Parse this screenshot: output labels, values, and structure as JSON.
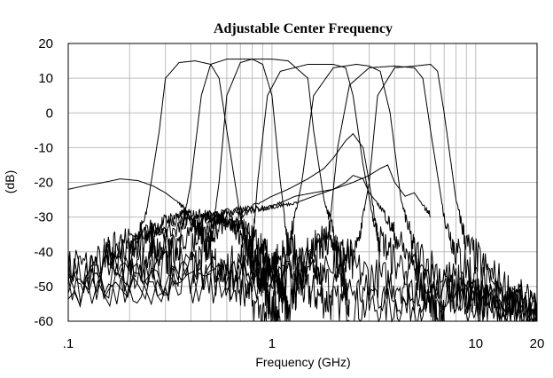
{
  "chart_data": {
    "type": "line",
    "title": "Adjustable Center Frequency",
    "xlabel": "Frequency (GHz)",
    "ylabel": "(dB)",
    "x_scale": "log",
    "xlim": [
      0.1,
      20
    ],
    "ylim": [
      -60,
      20
    ],
    "x_ticks": [
      {
        "value": 0.1,
        "label": ".1"
      },
      {
        "value": 1,
        "label": "1"
      },
      {
        "value": 10,
        "label": "10"
      },
      {
        "value": 20,
        "label": "20"
      }
    ],
    "y_ticks": [
      20,
      10,
      0,
      -10,
      -20,
      -30,
      -40,
      -50,
      -60
    ],
    "grid": true,
    "legend": "none",
    "series": [
      {
        "x": [
          0.1,
          0.15,
          0.2,
          0.24,
          0.28,
          0.3,
          0.35,
          0.42,
          0.5,
          0.55,
          0.6,
          0.7,
          0.8,
          1,
          1.3,
          1.6,
          2,
          3,
          5,
          8,
          12,
          20
        ],
        "y": [
          -45,
          -43,
          -42,
          -30,
          -5,
          10,
          14.5,
          15,
          14,
          10,
          -5,
          -30,
          -42,
          -47,
          -50,
          -52,
          -55,
          -56,
          -55,
          -56,
          -57,
          -58
        ]
      },
      {
        "x": [
          0.1,
          0.2,
          0.3,
          0.35,
          0.4,
          0.45,
          0.5,
          0.6,
          0.8,
          0.9,
          1,
          1.1,
          1.2,
          1.5,
          2,
          3,
          5,
          8,
          12,
          20
        ],
        "y": [
          -45,
          -44,
          -43,
          -38,
          -20,
          5,
          14,
          15.5,
          15.5,
          14,
          5,
          -20,
          -38,
          -45,
          -50,
          -52,
          -53,
          -52,
          -55,
          -57
        ]
      },
      {
        "x": [
          0.1,
          0.2,
          0.4,
          0.5,
          0.55,
          0.6,
          0.7,
          0.8,
          1,
          1.2,
          1.5,
          1.6,
          1.8,
          2.1,
          2.5,
          3.5,
          5,
          8,
          12,
          20
        ],
        "y": [
          -47,
          -46,
          -44,
          -38,
          -20,
          5,
          14.5,
          15.5,
          15.5,
          15,
          10,
          -5,
          -25,
          -38,
          -45,
          -48,
          -50,
          -52,
          -55,
          -57
        ]
      },
      {
        "x": [
          0.1,
          0.3,
          0.6,
          0.8,
          0.85,
          0.95,
          1.1,
          1.5,
          2,
          2.3,
          2.5,
          2.8,
          3.2,
          4,
          6,
          9,
          12,
          20
        ],
        "y": [
          -48,
          -47,
          -45,
          -40,
          -20,
          5,
          12,
          14,
          14,
          13,
          5,
          -15,
          -33,
          -43,
          -48,
          -52,
          -55,
          -57
        ]
      },
      {
        "x": [
          0.1,
          0.3,
          0.7,
          1,
          1.2,
          1.4,
          1.6,
          2,
          2.6,
          3,
          3.4,
          3.8,
          4.3,
          5,
          7,
          10,
          14,
          20
        ],
        "y": [
          -50,
          -49,
          -47,
          -44,
          -40,
          -20,
          5,
          13,
          14,
          13.5,
          12,
          0,
          -25,
          -40,
          -47,
          -52,
          -55,
          -57
        ]
      },
      {
        "x": [
          0.1,
          0.5,
          1,
          1.6,
          1.9,
          2.1,
          2.4,
          3,
          4,
          5,
          5.5,
          6,
          7,
          8,
          10,
          14,
          20
        ],
        "y": [
          -50,
          -49,
          -46,
          -44,
          -35,
          -10,
          8,
          13,
          13.5,
          13,
          10,
          -5,
          -30,
          -40,
          -48,
          -53,
          -57
        ]
      },
      {
        "x": [
          0.1,
          0.5,
          1,
          2,
          2.6,
          3,
          3.3,
          4,
          5,
          6,
          6.5,
          7,
          8,
          9,
          11,
          15,
          20
        ],
        "y": [
          -50,
          -49,
          -47,
          -45,
          -40,
          -20,
          5,
          13,
          13.5,
          14,
          12,
          0,
          -25,
          -38,
          -45,
          -52,
          -57
        ]
      },
      {
        "x": [
          0.1,
          0.12,
          0.15,
          0.18,
          0.22,
          0.26,
          0.3,
          0.35,
          0.4,
          0.45,
          0.5,
          0.6,
          0.8,
          1
        ],
        "y": [
          -22,
          -21,
          -20,
          -19,
          -19.5,
          -21,
          -23,
          -26,
          -30,
          -35,
          -40,
          -48,
          -55,
          -60
        ]
      },
      {
        "x": [
          0.2,
          0.25,
          0.3,
          0.35,
          0.4,
          0.45,
          0.5,
          0.6,
          0.7,
          0.8,
          0.9,
          1,
          1.1
        ],
        "y": [
          -40,
          -35,
          -31,
          -29.5,
          -29,
          -29,
          -29.5,
          -31,
          -35,
          -42,
          -50,
          -55,
          -60
        ]
      },
      {
        "x": [
          0.15,
          0.2,
          0.3,
          0.4,
          0.5,
          0.6,
          0.7,
          0.8,
          0.9,
          1,
          1.1,
          1.2,
          1.4,
          1.7,
          2,
          2.2,
          2.4
        ],
        "y": [
          -40,
          -36,
          -32,
          -30.5,
          -30,
          -31,
          -33,
          -36,
          -40,
          -45,
          -52,
          -58,
          -45,
          -35,
          -38,
          -45,
          -55
        ]
      },
      {
        "x": [
          0.15,
          0.2,
          0.3,
          0.4,
          0.5,
          0.7,
          1,
          1.3,
          1.6,
          2,
          2.3,
          2.5,
          2.8,
          3,
          3.5,
          4,
          5,
          6,
          7
        ],
        "y": [
          -40,
          -38,
          -34,
          -32,
          -30,
          -28,
          -27,
          -24,
          -23,
          -22,
          -20,
          -18,
          -19,
          -23,
          -28,
          -35,
          -45,
          -55,
          -60
        ]
      },
      {
        "x": [
          0.25,
          0.3,
          0.4,
          0.5,
          0.6,
          0.8,
          1,
          1.2,
          1.5,
          1.8,
          2,
          2.3,
          2.5,
          2.8,
          3,
          3.4
        ],
        "y": [
          -40,
          -38,
          -35,
          -32,
          -29,
          -27,
          -24,
          -22,
          -19,
          -16,
          -13,
          -8,
          -6,
          -10,
          -20,
          -40
        ]
      },
      {
        "x": [
          0.4,
          0.5,
          0.6,
          0.8,
          1,
          1.3,
          1.6,
          2,
          2.5,
          3,
          3.4,
          3.7,
          4,
          4.5,
          5,
          6
        ],
        "y": [
          -38,
          -35,
          -32,
          -28,
          -27,
          -26,
          -24,
          -22,
          -20,
          -18,
          -16,
          -15,
          -20,
          -24,
          -23,
          -30
        ]
      }
    ]
  }
}
